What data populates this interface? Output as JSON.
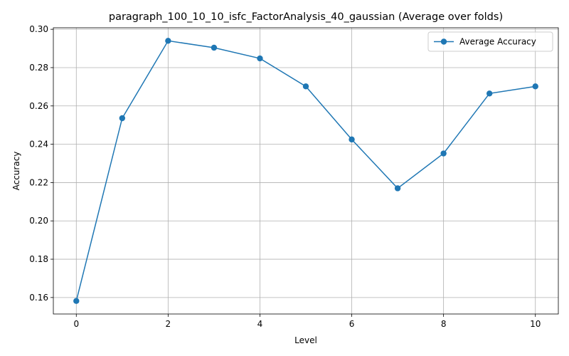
{
  "chart_data": {
    "type": "line",
    "title": "paragraph_100_10_10_isfc_FactorAnalysis_40_gaussian (Average over folds)",
    "xlabel": "Level",
    "ylabel": "Accuracy",
    "x": [
      0,
      1,
      2,
      3,
      4,
      5,
      6,
      7,
      8,
      9,
      10
    ],
    "series": [
      {
        "name": "Average Accuracy",
        "color": "#1f77b4",
        "marker": "circle",
        "values": [
          0.1582,
          0.2536,
          0.294,
          0.2904,
          0.2848,
          0.2702,
          0.2425,
          0.217,
          0.2352,
          0.2665,
          0.2702
        ]
      }
    ],
    "xlim": [
      -0.5,
      10.5
    ],
    "ylim": [
      0.1514,
      0.3008
    ],
    "xticks": [
      0,
      2,
      4,
      6,
      8,
      10
    ],
    "xtick_labels": [
      "0",
      "2",
      "4",
      "6",
      "8",
      "10"
    ],
    "yticks": [
      0.16,
      0.18,
      0.2,
      0.22,
      0.24,
      0.26,
      0.28,
      0.3
    ],
    "ytick_labels": [
      "0.16",
      "0.18",
      "0.20",
      "0.22",
      "0.24",
      "0.26",
      "0.28",
      "0.30"
    ],
    "grid": true,
    "legend_position": "upper right"
  }
}
